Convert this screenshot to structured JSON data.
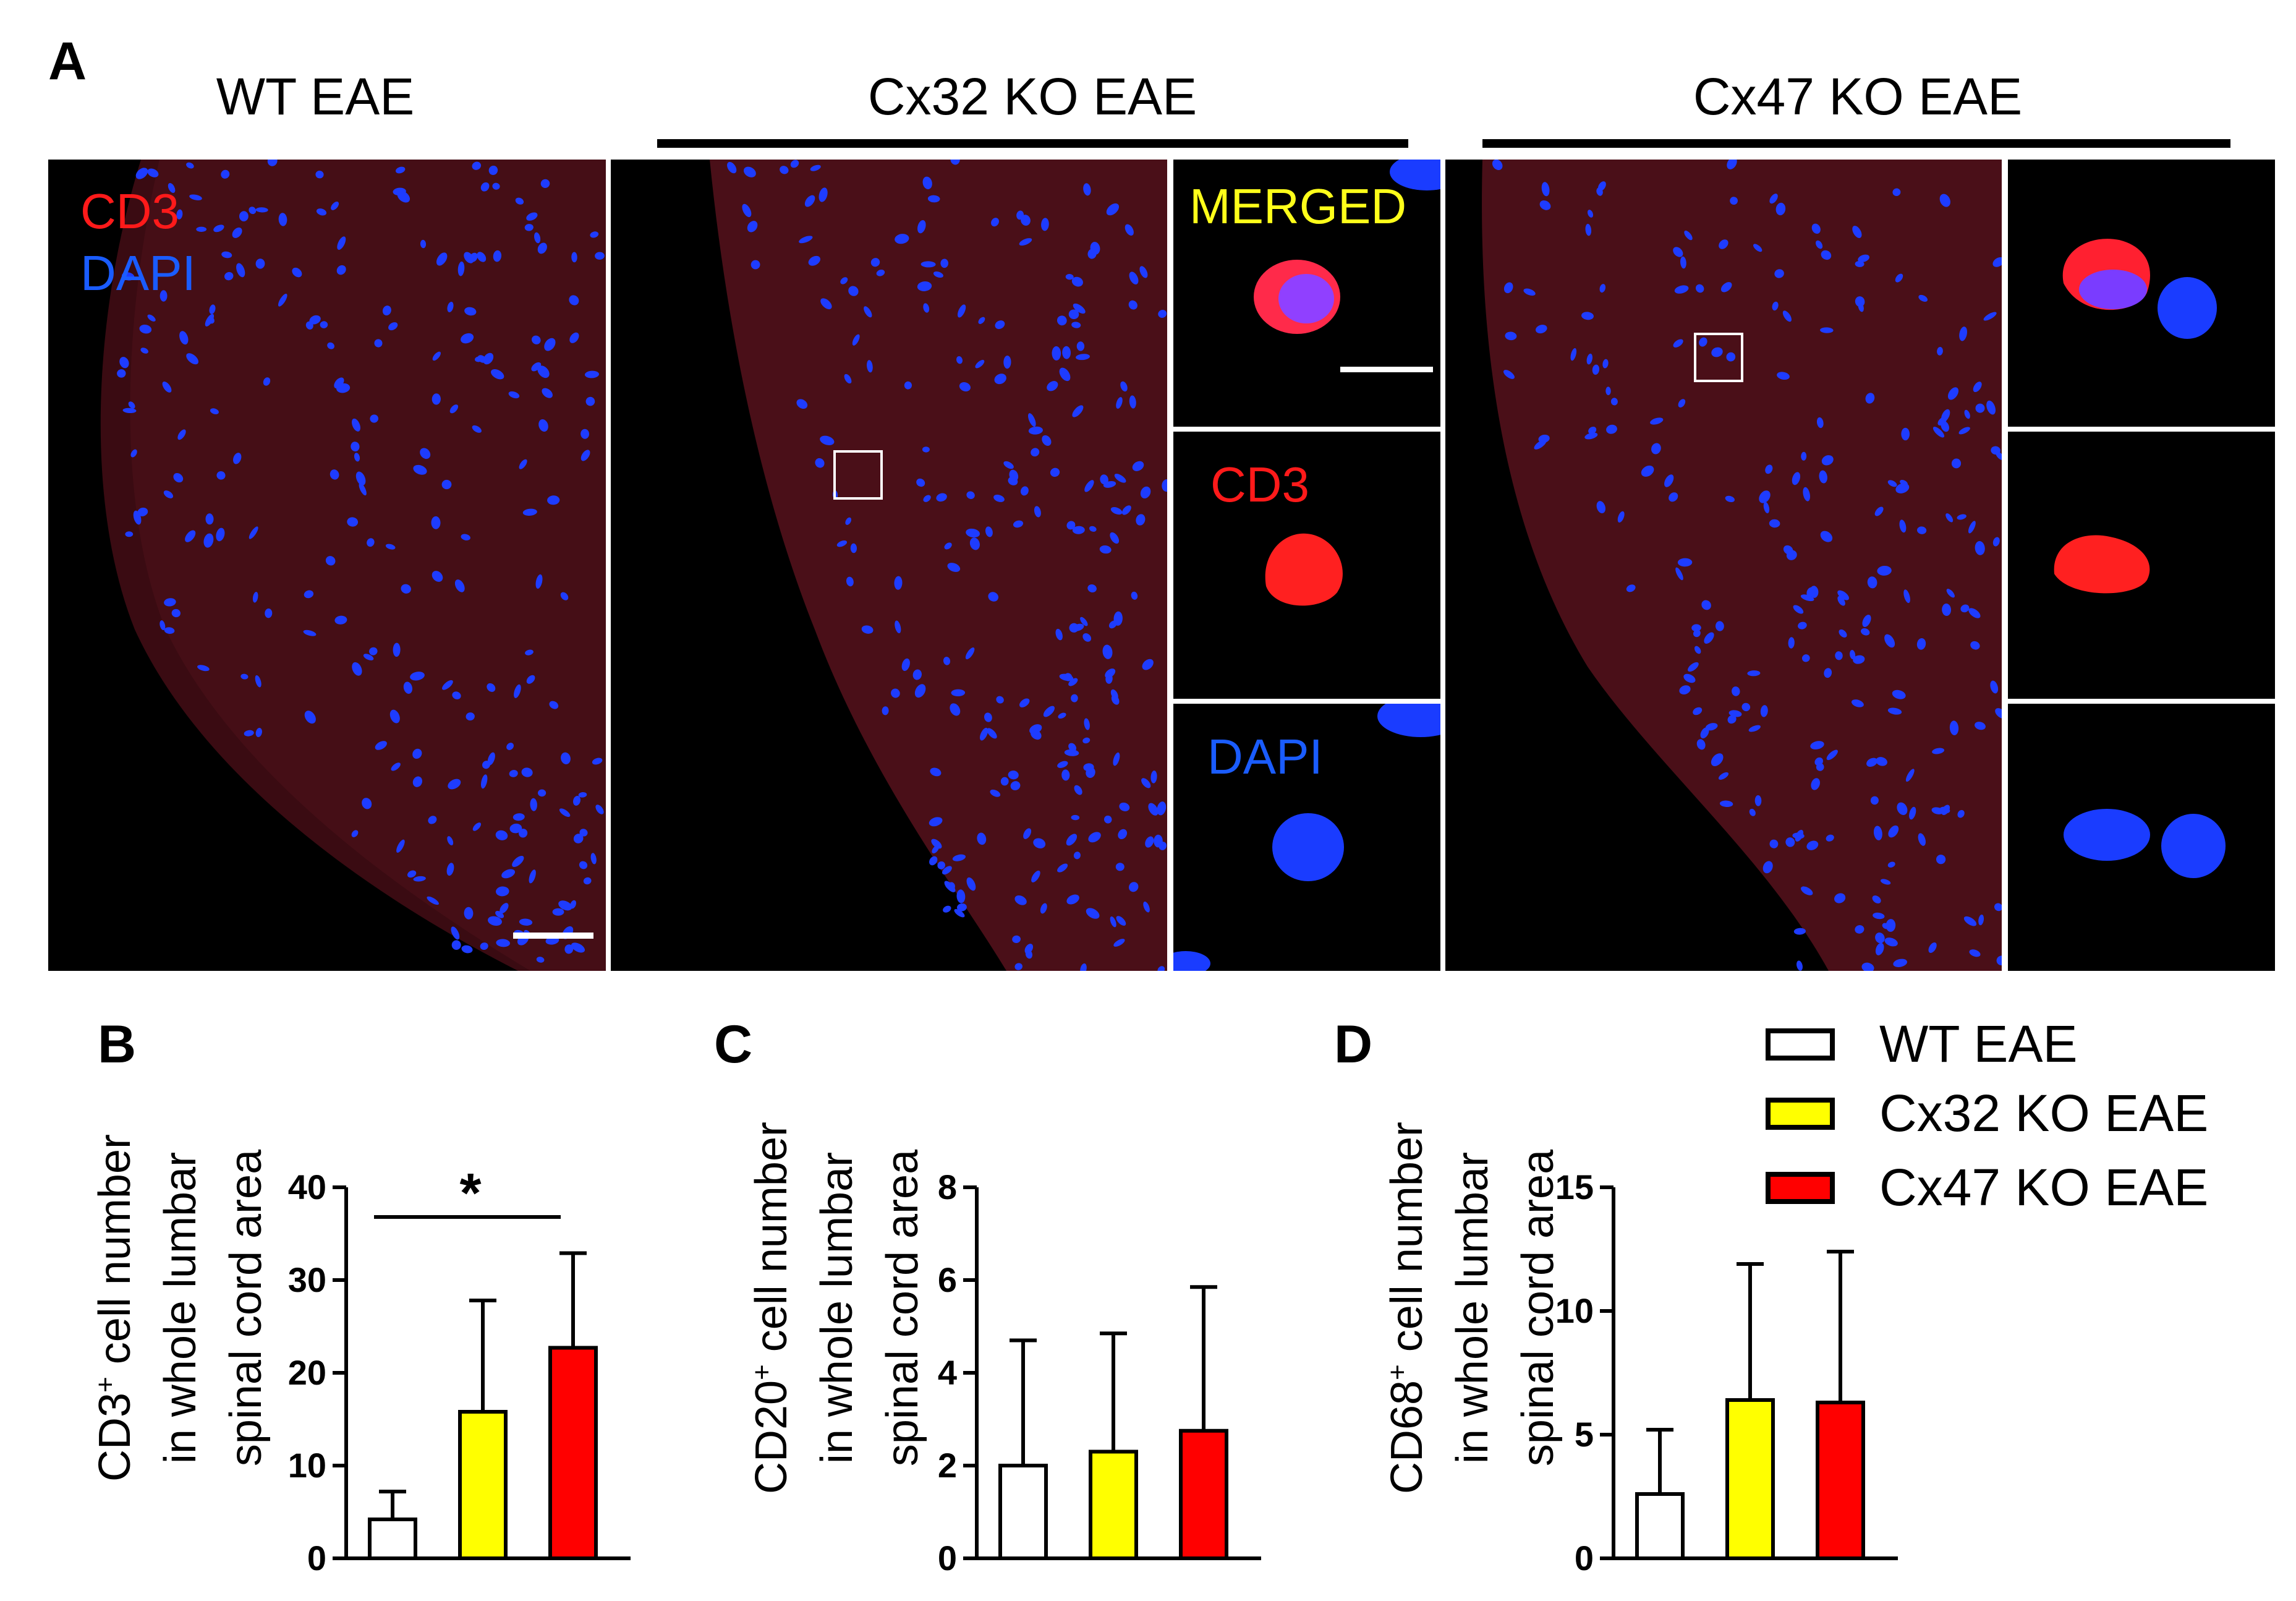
{
  "panels": {
    "a_letter": "A",
    "b_letter": "B",
    "c_letter": "C",
    "d_letter": "D"
  },
  "micrographs": {
    "group_titles": [
      "WT EAE",
      "Cx32 KO EAE",
      "Cx47 KO EAE"
    ],
    "wt_labels": {
      "cd3": "CD3",
      "dapi": "DAPI"
    },
    "inset_labels": {
      "merged": "MERGED",
      "cd3": "CD3",
      "dapi": "DAPI"
    },
    "colors": {
      "cd3": "#ff1a1a",
      "dapi": "#1a5cff",
      "merged": "#ffff1a"
    }
  },
  "legend": {
    "entries": [
      {
        "label": "WT EAE",
        "color": "#ffffff"
      },
      {
        "label": "Cx32 KO EAE",
        "color": "#ffff00"
      },
      {
        "label": "Cx47 KO EAE",
        "color": "#ff0000"
      }
    ]
  },
  "ylabels": {
    "b": {
      "pre": "CD3",
      "sup": "+",
      "post": " cell number",
      "line2": "in whole lumbar",
      "line3": "spinal cord area"
    },
    "c": {
      "pre": "CD20",
      "sup": "+",
      "post": " cell number",
      "line2": "in whole lumbar",
      "line3": "spinal cord area"
    },
    "d": {
      "pre": "CD68",
      "sup": "+",
      "post": " cell number",
      "line2": "in whole lumbar",
      "line3": "spinal cord area"
    }
  },
  "chart_data": [
    {
      "type": "bar",
      "panel": "B",
      "categories": [
        "WT EAE",
        "Cx32 KO EAE",
        "Cx47 KO EAE"
      ],
      "values": [
        4.2,
        15.8,
        22.7
      ],
      "errors": [
        3.0,
        12.0,
        10.2
      ],
      "colors": [
        "#ffffff",
        "#ffff00",
        "#ff0000"
      ],
      "ylim": [
        0,
        40
      ],
      "yticks": [
        0,
        10,
        20,
        30,
        40
      ],
      "significance": {
        "from": 0,
        "to": 2,
        "label": "*"
      }
    },
    {
      "type": "bar",
      "panel": "C",
      "categories": [
        "WT EAE",
        "Cx32 KO EAE",
        "Cx47 KO EAE"
      ],
      "values": [
        2.0,
        2.3,
        2.75
      ],
      "errors": [
        2.7,
        2.55,
        3.1
      ],
      "colors": [
        "#ffffff",
        "#ffff00",
        "#ff0000"
      ],
      "ylim": [
        0,
        8
      ],
      "yticks": [
        0,
        2,
        4,
        6,
        8
      ]
    },
    {
      "type": "bar",
      "panel": "D",
      "categories": [
        "WT EAE",
        "Cx32 KO EAE",
        "Cx47 KO EAE"
      ],
      "values": [
        2.6,
        6.4,
        6.3
      ],
      "errors": [
        2.6,
        5.5,
        6.1
      ],
      "colors": [
        "#ffffff",
        "#ffff00",
        "#ff0000"
      ],
      "ylim": [
        0,
        15
      ],
      "yticks": [
        0,
        5,
        10,
        15
      ]
    }
  ]
}
